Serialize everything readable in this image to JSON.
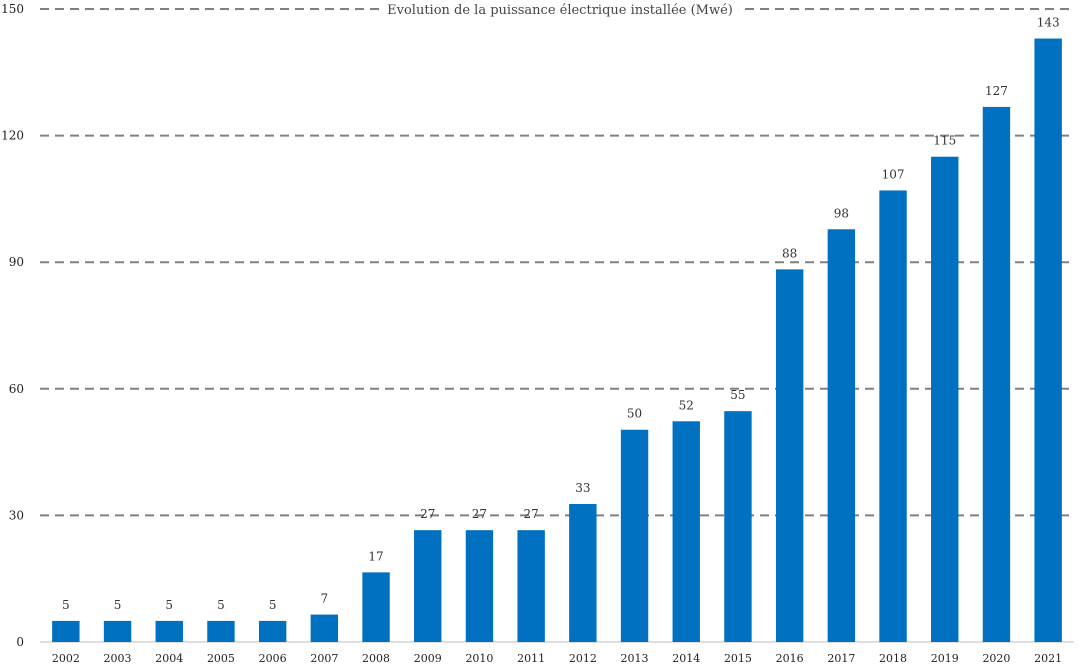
{
  "chart_data": {
    "type": "bar",
    "title": "Evolution de la puissance électrique installée (Mwé)",
    "categories": [
      "2002",
      "2003",
      "2004",
      "2005",
      "2006",
      "2007",
      "2008",
      "2009",
      "2010",
      "2011",
      "2012",
      "2013",
      "2014",
      "2015",
      "2016",
      "2017",
      "2018",
      "2019",
      "2020",
      "2021"
    ],
    "values": [
      5,
      5,
      5,
      5,
      5,
      6.5,
      16.5,
      26.5,
      26.5,
      26.5,
      32.7,
      50.3,
      52.3,
      54.7,
      88.3,
      97.8,
      107,
      115,
      126.8,
      143
    ],
    "data_labels": [
      "5",
      "5",
      "5",
      "5",
      "5",
      "7",
      "17",
      "27",
      "27",
      "27",
      "33",
      "50",
      "52",
      "55",
      "88",
      "98",
      "107",
      "115",
      "127",
      "143"
    ],
    "ylim": [
      0,
      150
    ],
    "yticks": [
      0,
      30,
      60,
      90,
      120,
      150
    ],
    "grid": true,
    "legend": "none",
    "bar_color": "#0070C0",
    "grid_color": "#808080"
  }
}
